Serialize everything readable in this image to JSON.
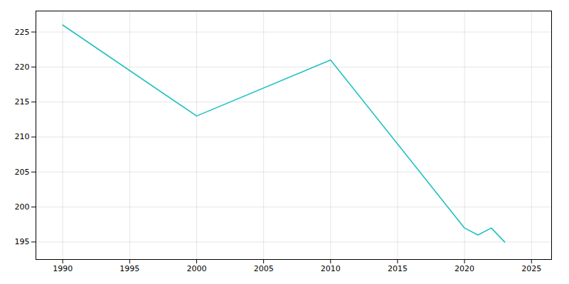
{
  "chart_data": {
    "type": "line",
    "x": [
      1990,
      2000,
      2010,
      2020,
      2021,
      2022,
      2023
    ],
    "values": [
      226,
      213,
      221,
      197,
      196,
      197,
      195
    ],
    "color": "#20c0c0",
    "xlim": [
      1988,
      2026.5
    ],
    "ylim": [
      192.5,
      228
    ],
    "xticks": [
      1990,
      1995,
      2000,
      2005,
      2010,
      2015,
      2020,
      2025
    ],
    "yticks": [
      195,
      200,
      205,
      210,
      215,
      220,
      225
    ],
    "grid": true
  }
}
